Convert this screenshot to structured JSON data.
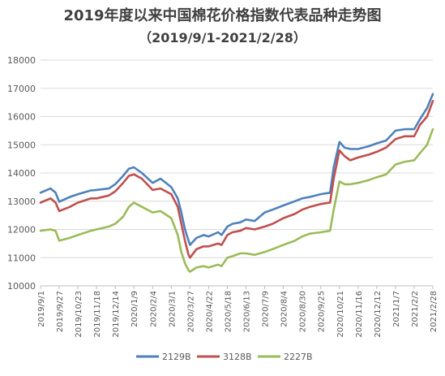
{
  "chart_data": {
    "type": "line",
    "title": "2019年度以来中国棉花价格指数代表品种走势图",
    "subtitle": "（2019/9/1-2021/2/28）",
    "ylim": [
      10000,
      18000
    ],
    "y_ticks": [
      10000,
      11000,
      12000,
      13000,
      14000,
      15000,
      16000,
      17000,
      18000
    ],
    "x_range": [
      "2019/9/1",
      "2021/2/28"
    ],
    "x_ticks": [
      "2019/9/1",
      "2019/9/27",
      "2019/10/23",
      "2019/11/18",
      "2019/12/14",
      "2020/1/9",
      "2020/2/4",
      "2020/3/1",
      "2020/3/27",
      "2020/4/22",
      "2020/5/18",
      "2020/6/13",
      "2020/7/9",
      "2020/8/4",
      "2020/8/30",
      "2020/9/25",
      "2020/10/21",
      "2020/11/16",
      "2020/12/12",
      "2021/1/7",
      "2021/2/2",
      "2021/2/28"
    ],
    "grid": true,
    "legend_position": "bottom",
    "series": [
      {
        "name": "2129B",
        "color": "#4e81bd",
        "x": [
          "2019/9/1",
          "2019/9/15",
          "2019/9/22",
          "2019/9/27",
          "2019/10/12",
          "2019/10/23",
          "2019/11/10",
          "2019/11/18",
          "2019/12/5",
          "2019/12/14",
          "2019/12/25",
          "2020/1/2",
          "2020/1/9",
          "2020/1/20",
          "2020/2/4",
          "2020/2/15",
          "2020/3/1",
          "2020/3/10",
          "2020/3/15",
          "2020/3/20",
          "2020/3/25",
          "2020/3/27",
          "2020/4/5",
          "2020/4/15",
          "2020/4/22",
          "2020/5/5",
          "2020/5/10",
          "2020/5/18",
          "2020/5/25",
          "2020/6/5",
          "2020/6/13",
          "2020/6/25",
          "2020/7/9",
          "2020/7/20",
          "2020/8/4",
          "2020/8/20",
          "2020/8/30",
          "2020/9/10",
          "2020/9/25",
          "2020/10/8",
          "2020/10/13",
          "2020/10/21",
          "2020/10/28",
          "2020/11/5",
          "2020/11/16",
          "2020/12/1",
          "2020/12/12",
          "2020/12/25",
          "2021/1/7",
          "2021/1/20",
          "2021/2/2",
          "2021/2/10",
          "2021/2/20",
          "2021/2/28"
        ],
        "values": [
          13300,
          13450,
          13300,
          12980,
          13150,
          13250,
          13380,
          13400,
          13450,
          13600,
          13900,
          14150,
          14200,
          14000,
          13650,
          13800,
          13500,
          13100,
          12600,
          12000,
          11600,
          11450,
          11700,
          11800,
          11750,
          11900,
          11800,
          12100,
          12200,
          12250,
          12350,
          12300,
          12600,
          12700,
          12850,
          13000,
          13100,
          13150,
          13250,
          13300,
          14200,
          15100,
          14900,
          14850,
          14850,
          14950,
          15050,
          15150,
          15500,
          15550,
          15550,
          15900,
          16300,
          16800
        ]
      },
      {
        "name": "3128B",
        "color": "#c0504d",
        "x": [
          "2019/9/1",
          "2019/9/15",
          "2019/9/22",
          "2019/9/27",
          "2019/10/12",
          "2019/10/23",
          "2019/11/10",
          "2019/11/18",
          "2019/12/5",
          "2019/12/14",
          "2019/12/25",
          "2020/1/2",
          "2020/1/9",
          "2020/1/20",
          "2020/2/4",
          "2020/2/15",
          "2020/3/1",
          "2020/3/10",
          "2020/3/15",
          "2020/3/20",
          "2020/3/25",
          "2020/3/27",
          "2020/4/5",
          "2020/4/15",
          "2020/4/22",
          "2020/5/5",
          "2020/5/10",
          "2020/5/18",
          "2020/5/25",
          "2020/6/5",
          "2020/6/13",
          "2020/6/25",
          "2020/7/9",
          "2020/7/20",
          "2020/8/4",
          "2020/8/20",
          "2020/8/30",
          "2020/9/10",
          "2020/9/25",
          "2020/10/8",
          "2020/10/13",
          "2020/10/21",
          "2020/10/28",
          "2020/11/5",
          "2020/11/16",
          "2020/12/1",
          "2020/12/12",
          "2020/12/25",
          "2021/1/7",
          "2021/1/20",
          "2021/2/2",
          "2021/2/10",
          "2021/2/20",
          "2021/2/28"
        ],
        "values": [
          12950,
          13100,
          12950,
          12650,
          12800,
          12950,
          13100,
          13100,
          13200,
          13350,
          13650,
          13900,
          13950,
          13800,
          13400,
          13450,
          13250,
          12800,
          12200,
          11600,
          11100,
          11000,
          11300,
          11400,
          11400,
          11500,
          11450,
          11800,
          11900,
          11950,
          12050,
          12000,
          12100,
          12200,
          12400,
          12550,
          12700,
          12800,
          12900,
          12950,
          13800,
          14800,
          14600,
          14450,
          14550,
          14650,
          14750,
          14900,
          15200,
          15300,
          15300,
          15700,
          16000,
          16550
        ]
      },
      {
        "name": "2227B",
        "color": "#9bbb59",
        "x": [
          "2019/9/1",
          "2019/9/15",
          "2019/9/22",
          "2019/9/27",
          "2019/10/12",
          "2019/10/23",
          "2019/11/10",
          "2019/11/18",
          "2019/12/5",
          "2019/12/14",
          "2019/12/25",
          "2020/1/2",
          "2020/1/9",
          "2020/1/20",
          "2020/2/4",
          "2020/2/15",
          "2020/3/1",
          "2020/3/10",
          "2020/3/15",
          "2020/3/20",
          "2020/3/25",
          "2020/3/27",
          "2020/4/5",
          "2020/4/15",
          "2020/4/22",
          "2020/5/5",
          "2020/5/10",
          "2020/5/18",
          "2020/5/25",
          "2020/6/5",
          "2020/6/13",
          "2020/6/25",
          "2020/7/9",
          "2020/7/20",
          "2020/8/4",
          "2020/8/20",
          "2020/8/30",
          "2020/9/10",
          "2020/9/25",
          "2020/10/8",
          "2020/10/13",
          "2020/10/21",
          "2020/10/28",
          "2020/11/5",
          "2020/11/16",
          "2020/12/1",
          "2020/12/12",
          "2020/12/25",
          "2021/1/7",
          "2021/1/20",
          "2021/2/2",
          "2021/2/10",
          "2021/2/20",
          "2021/2/28"
        ],
        "values": [
          11950,
          12000,
          11950,
          11600,
          11700,
          11800,
          11950,
          12000,
          12100,
          12200,
          12450,
          12800,
          12950,
          12800,
          12600,
          12650,
          12400,
          11800,
          11200,
          10800,
          10550,
          10500,
          10650,
          10700,
          10650,
          10750,
          10700,
          11000,
          11050,
          11150,
          11150,
          11100,
          11200,
          11300,
          11450,
          11600,
          11750,
          11850,
          11900,
          11950,
          12700,
          13700,
          13600,
          13600,
          13650,
          13750,
          13850,
          13950,
          14300,
          14400,
          14450,
          14700,
          15000,
          15550
        ]
      }
    ]
  }
}
